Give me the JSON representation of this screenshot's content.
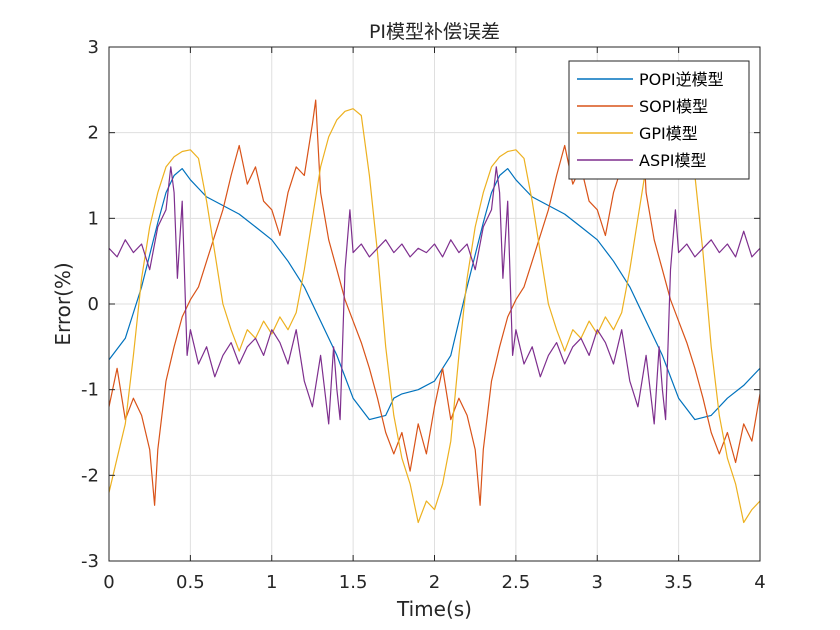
{
  "chart_data": {
    "type": "line",
    "title": "PI模型补偿误差",
    "xlabel": "Time(s)",
    "ylabel": "Error(%)",
    "xlim": [
      0,
      4
    ],
    "ylim": [
      -3,
      3
    ],
    "xticks": [
      0,
      0.5,
      1,
      1.5,
      2,
      2.5,
      3,
      3.5,
      4
    ],
    "xtick_labels": [
      "0",
      "0.5",
      "1",
      "1.5",
      "2",
      "2.5",
      "3",
      "3.5",
      "4"
    ],
    "yticks": [
      -3,
      -2,
      -1,
      0,
      1,
      2,
      3
    ],
    "ytick_labels": [
      "-3",
      "-2",
      "-1",
      "0",
      "1",
      "2",
      "3"
    ],
    "grid": true,
    "legend_position": "top-right",
    "series": [
      {
        "name": "POPI逆模型",
        "color": "#0072BD",
        "x": [
          0,
          0.1,
          0.2,
          0.3,
          0.35,
          0.4,
          0.45,
          0.5,
          0.55,
          0.6,
          0.7,
          0.8,
          0.9,
          1.0,
          1.1,
          1.2,
          1.3,
          1.4,
          1.5,
          1.6,
          1.7,
          1.75,
          1.8,
          1.9,
          2.0,
          2.1,
          2.2,
          2.3,
          2.35,
          2.4,
          2.45,
          2.5,
          2.55,
          2.6,
          2.7,
          2.8,
          2.9,
          3.0,
          3.1,
          3.2,
          3.3,
          3.4,
          3.5,
          3.6,
          3.7,
          3.8,
          3.9,
          4.0
        ],
        "y": [
          -0.65,
          -0.4,
          0.2,
          0.95,
          1.3,
          1.5,
          1.58,
          1.45,
          1.35,
          1.25,
          1.15,
          1.05,
          0.9,
          0.75,
          0.5,
          0.2,
          -0.2,
          -0.6,
          -1.1,
          -1.35,
          -1.3,
          -1.1,
          -1.05,
          -1.0,
          -0.9,
          -0.6,
          0.2,
          0.95,
          1.3,
          1.5,
          1.58,
          1.45,
          1.35,
          1.25,
          1.15,
          1.05,
          0.9,
          0.75,
          0.5,
          0.2,
          -0.2,
          -0.6,
          -1.1,
          -1.35,
          -1.3,
          -1.1,
          -0.95,
          -0.75
        ]
      },
      {
        "name": "SOPI模型",
        "color": "#D95319",
        "x": [
          0,
          0.05,
          0.1,
          0.15,
          0.2,
          0.25,
          0.28,
          0.3,
          0.35,
          0.4,
          0.45,
          0.5,
          0.55,
          0.6,
          0.7,
          0.75,
          0.8,
          0.85,
          0.9,
          0.95,
          1.0,
          1.05,
          1.1,
          1.15,
          1.2,
          1.25,
          1.27,
          1.3,
          1.35,
          1.4,
          1.45,
          1.5,
          1.55,
          1.6,
          1.65,
          1.7,
          1.75,
          1.8,
          1.85,
          1.9,
          1.95,
          2.0,
          2.05,
          2.1,
          2.15,
          2.2,
          2.25,
          2.28,
          2.3,
          2.35,
          2.4,
          2.45,
          2.5,
          2.55,
          2.6,
          2.7,
          2.75,
          2.8,
          2.85,
          2.9,
          2.95,
          3.0,
          3.05,
          3.1,
          3.15,
          3.2,
          3.25,
          3.27,
          3.3,
          3.35,
          3.4,
          3.45,
          3.5,
          3.55,
          3.6,
          3.65,
          3.7,
          3.75,
          3.8,
          3.85,
          3.9,
          3.95,
          4.0
        ],
        "y": [
          -1.2,
          -0.75,
          -1.35,
          -1.1,
          -1.3,
          -1.7,
          -2.35,
          -1.7,
          -0.9,
          -0.5,
          -0.15,
          0.05,
          0.2,
          0.5,
          1.1,
          1.5,
          1.85,
          1.4,
          1.6,
          1.2,
          1.1,
          0.8,
          1.3,
          1.6,
          1.5,
          2.1,
          2.38,
          1.3,
          0.75,
          0.4,
          0.05,
          -0.2,
          -0.45,
          -0.75,
          -1.1,
          -1.5,
          -1.75,
          -1.5,
          -1.95,
          -1.4,
          -1.75,
          -1.2,
          -0.75,
          -1.35,
          -1.1,
          -1.3,
          -1.7,
          -2.35,
          -1.7,
          -0.9,
          -0.5,
          -0.15,
          0.05,
          0.2,
          0.5,
          1.1,
          1.5,
          1.85,
          1.4,
          1.6,
          1.2,
          1.1,
          0.8,
          1.3,
          1.6,
          1.5,
          2.1,
          2.38,
          1.3,
          0.75,
          0.4,
          0.05,
          -0.2,
          -0.45,
          -0.75,
          -1.1,
          -1.5,
          -1.75,
          -1.5,
          -1.85,
          -1.4,
          -1.6,
          -1.05
        ]
      },
      {
        "name": "GPI模型",
        "color": "#EDB120",
        "x": [
          0,
          0.05,
          0.1,
          0.15,
          0.2,
          0.25,
          0.3,
          0.35,
          0.4,
          0.45,
          0.5,
          0.55,
          0.6,
          0.65,
          0.7,
          0.75,
          0.8,
          0.85,
          0.9,
          0.95,
          1.0,
          1.05,
          1.1,
          1.15,
          1.2,
          1.25,
          1.3,
          1.35,
          1.4,
          1.45,
          1.5,
          1.55,
          1.6,
          1.65,
          1.7,
          1.75,
          1.8,
          1.85,
          1.9,
          1.95,
          2.0,
          2.05,
          2.1,
          2.15,
          2.2,
          2.25,
          2.3,
          2.35,
          2.4,
          2.45,
          2.5,
          2.55,
          2.6,
          2.65,
          2.7,
          2.75,
          2.8,
          2.85,
          2.9,
          2.95,
          3.0,
          3.05,
          3.1,
          3.15,
          3.2,
          3.25,
          3.3,
          3.35,
          3.4,
          3.45,
          3.5,
          3.55,
          3.6,
          3.65,
          3.7,
          3.75,
          3.8,
          3.85,
          3.9,
          3.95,
          4.0
        ],
        "y": [
          -2.2,
          -1.8,
          -1.4,
          -0.6,
          0.3,
          0.9,
          1.3,
          1.6,
          1.72,
          1.78,
          1.8,
          1.7,
          1.2,
          0.6,
          0.0,
          -0.3,
          -0.55,
          -0.3,
          -0.4,
          -0.2,
          -0.35,
          -0.15,
          -0.3,
          -0.1,
          0.4,
          1.0,
          1.6,
          1.95,
          2.15,
          2.25,
          2.28,
          2.2,
          1.5,
          0.6,
          -0.5,
          -1.3,
          -1.8,
          -2.1,
          -2.55,
          -2.3,
          -2.4,
          -2.1,
          -1.6,
          -0.6,
          0.3,
          0.9,
          1.3,
          1.6,
          1.72,
          1.78,
          1.8,
          1.7,
          1.2,
          0.6,
          0.0,
          -0.3,
          -0.55,
          -0.3,
          -0.4,
          -0.2,
          -0.35,
          -0.15,
          -0.3,
          -0.1,
          0.4,
          1.0,
          1.6,
          1.95,
          2.15,
          2.25,
          2.28,
          2.2,
          1.5,
          0.6,
          -0.5,
          -1.3,
          -1.8,
          -2.1,
          -2.55,
          -2.4,
          -2.3
        ]
      },
      {
        "name": "ASPI模型",
        "color": "#7E2F8E",
        "x": [
          0,
          0.05,
          0.1,
          0.15,
          0.2,
          0.25,
          0.3,
          0.35,
          0.38,
          0.4,
          0.42,
          0.45,
          0.48,
          0.5,
          0.55,
          0.6,
          0.65,
          0.7,
          0.75,
          0.8,
          0.85,
          0.9,
          0.95,
          1.0,
          1.05,
          1.1,
          1.15,
          1.2,
          1.25,
          1.3,
          1.35,
          1.38,
          1.4,
          1.42,
          1.45,
          1.48,
          1.5,
          1.55,
          1.6,
          1.65,
          1.7,
          1.75,
          1.8,
          1.85,
          1.9,
          1.95,
          2.0,
          2.05,
          2.1,
          2.15,
          2.2,
          2.25,
          2.3,
          2.35,
          2.38,
          2.4,
          2.42,
          2.45,
          2.48,
          2.5,
          2.55,
          2.6,
          2.65,
          2.7,
          2.75,
          2.8,
          2.85,
          2.9,
          2.95,
          3.0,
          3.05,
          3.1,
          3.15,
          3.2,
          3.25,
          3.3,
          3.35,
          3.38,
          3.4,
          3.42,
          3.45,
          3.48,
          3.5,
          3.55,
          3.6,
          3.65,
          3.7,
          3.75,
          3.8,
          3.85,
          3.9,
          3.95,
          4.0
        ],
        "y": [
          0.65,
          0.55,
          0.75,
          0.6,
          0.7,
          0.4,
          0.9,
          1.1,
          1.6,
          1.3,
          0.3,
          1.2,
          -0.6,
          -0.3,
          -0.7,
          -0.5,
          -0.85,
          -0.6,
          -0.45,
          -0.7,
          -0.5,
          -0.4,
          -0.6,
          -0.3,
          -0.45,
          -0.7,
          -0.3,
          -0.9,
          -1.2,
          -0.6,
          -1.4,
          -0.5,
          -1.0,
          -1.35,
          0.4,
          1.1,
          0.6,
          0.7,
          0.55,
          0.65,
          0.75,
          0.6,
          0.7,
          0.55,
          0.65,
          0.6,
          0.7,
          0.55,
          0.75,
          0.6,
          0.7,
          0.4,
          0.9,
          1.1,
          1.6,
          1.3,
          0.3,
          1.2,
          -0.6,
          -0.3,
          -0.7,
          -0.5,
          -0.85,
          -0.6,
          -0.45,
          -0.7,
          -0.5,
          -0.4,
          -0.6,
          -0.3,
          -0.45,
          -0.7,
          -0.3,
          -0.9,
          -1.2,
          -0.6,
          -1.4,
          -0.5,
          -1.0,
          -1.35,
          0.4,
          1.1,
          0.6,
          0.7,
          0.55,
          0.65,
          0.75,
          0.6,
          0.7,
          0.55,
          0.85,
          0.55,
          0.65
        ]
      }
    ]
  }
}
